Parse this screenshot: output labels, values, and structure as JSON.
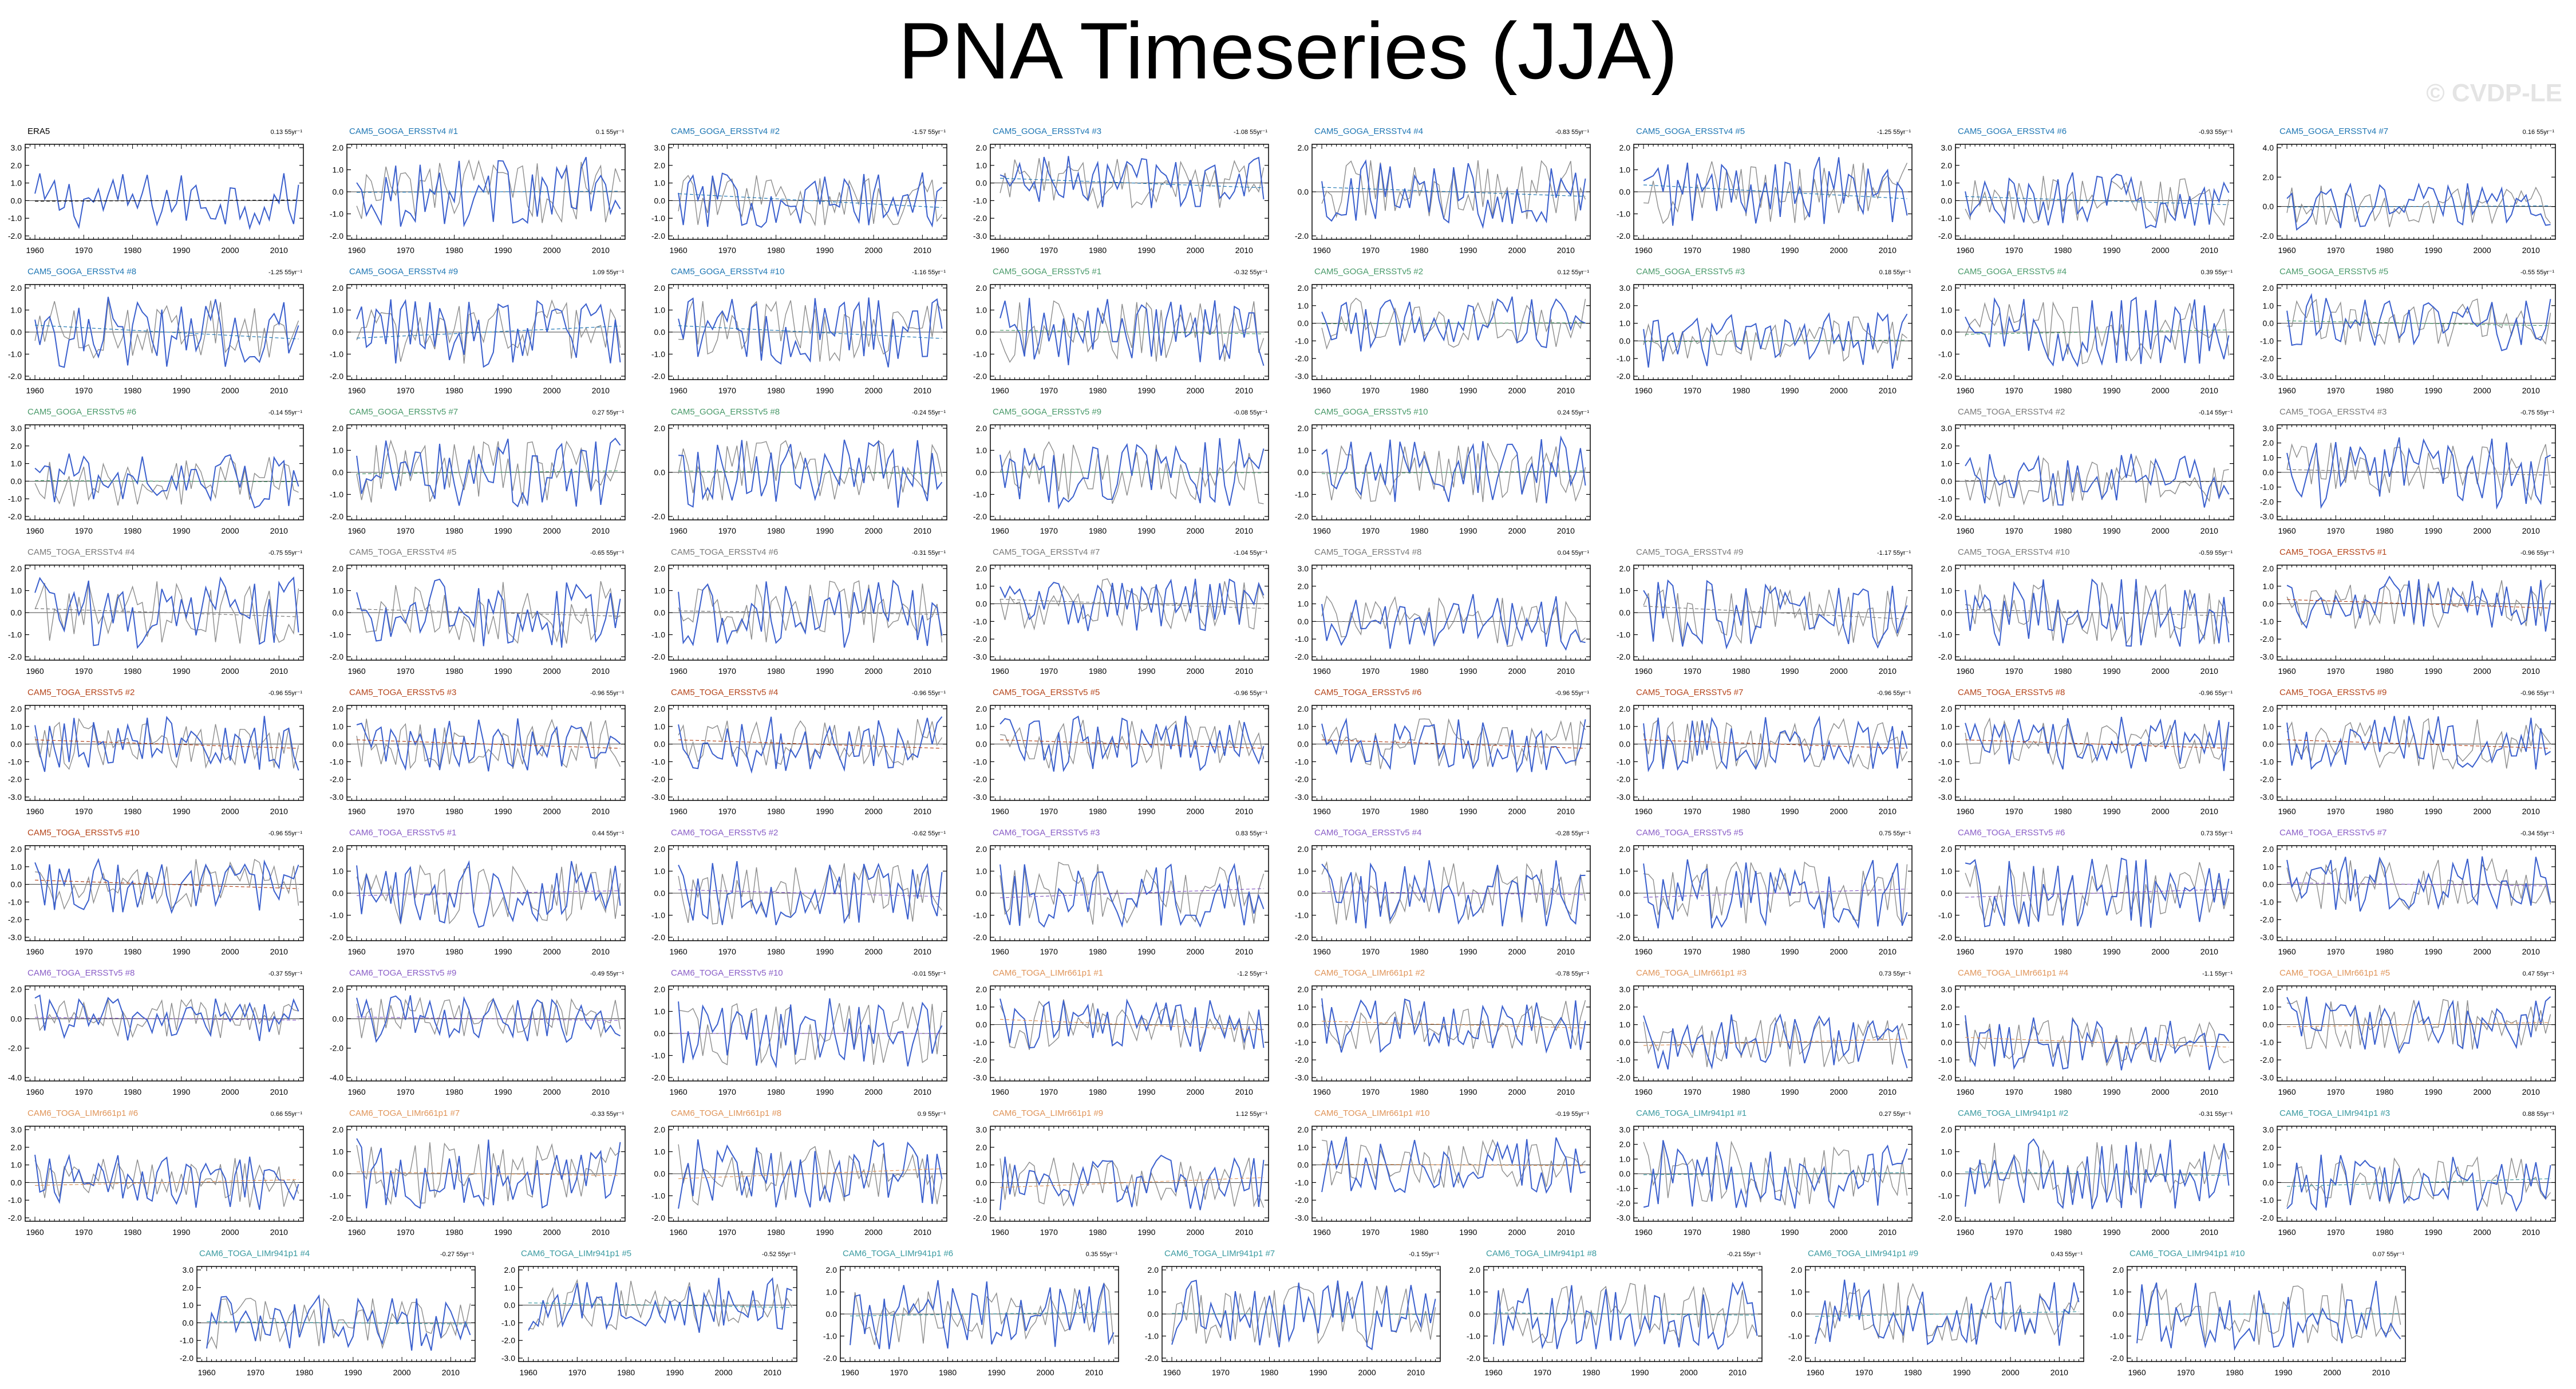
{
  "page": {
    "title": "PNA Timeseries (JJA)",
    "watermark": "© CVDP-LE"
  },
  "colors": {
    "member_line": "#3a5fcd",
    "obs_line": "#8c8c8c",
    "zero_line": "#000000"
  },
  "chart_data": {
    "type": "line",
    "x_ticks": [
      "1960",
      "1970",
      "1980",
      "1990",
      "2000",
      "2010"
    ],
    "xlim": [
      1958,
      2015
    ],
    "trend_unit": "55yr",
    "panels": [
      {
        "name": "ERA5",
        "trend": "0.13",
        "color": "#000000",
        "yticks": [
          "3.0",
          "2.0",
          "1.0",
          "0.0",
          "-1.0",
          "-2.0"
        ]
      },
      {
        "name": "CAM5_GOGA_ERSSTv4 #1",
        "trend": "0.1",
        "color": "#1f77b4",
        "yticks": [
          "2.0",
          "1.0",
          "0.0",
          "-1.0",
          "-2.0"
        ]
      },
      {
        "name": "CAM5_GOGA_ERSSTv4 #2",
        "trend": "-1.57",
        "color": "#1f77b4",
        "yticks": [
          "3.0",
          "2.0",
          "1.0",
          "0.0",
          "-1.0",
          "-2.0"
        ]
      },
      {
        "name": "CAM5_GOGA_ERSSTv4 #3",
        "trend": "-1.08",
        "color": "#1f77b4",
        "yticks": [
          "2.0",
          "1.0",
          "0.0",
          "-1.0",
          "-2.0",
          "-3.0"
        ]
      },
      {
        "name": "CAM5_GOGA_ERSSTv4 #4",
        "trend": "-0.83",
        "color": "#1f77b4",
        "yticks": [
          "2.0",
          "0.0",
          "-2.0"
        ]
      },
      {
        "name": "CAM5_GOGA_ERSSTv4 #5",
        "trend": "-1.25",
        "color": "#1f77b4",
        "yticks": [
          "2.0",
          "1.0",
          "0.0",
          "-1.0",
          "-2.0"
        ]
      },
      {
        "name": "CAM5_GOGA_ERSSTv4 #6",
        "trend": "-0.93",
        "color": "#1f77b4",
        "yticks": [
          "3.0",
          "2.0",
          "1.0",
          "0.0",
          "-1.0",
          "-2.0"
        ]
      },
      {
        "name": "CAM5_GOGA_ERSSTv4 #7",
        "trend": "0.16",
        "color": "#1f77b4",
        "yticks": [
          "4.0",
          "2.0",
          "0.0",
          "-2.0"
        ]
      },
      {
        "name": "CAM5_GOGA_ERSSTv4 #8",
        "trend": "-1.25",
        "color": "#1f77b4",
        "yticks": [
          "2.0",
          "1.0",
          "0.0",
          "-1.0",
          "-2.0"
        ]
      },
      {
        "name": "CAM5_GOGA_ERSSTv4 #9",
        "trend": "1.09",
        "color": "#1f77b4",
        "yticks": [
          "2.0",
          "1.0",
          "0.0",
          "-1.0",
          "-2.0"
        ]
      },
      {
        "name": "CAM5_GOGA_ERSSTv4 #10",
        "trend": "-1.16",
        "color": "#1f77b4",
        "yticks": [
          "2.0",
          "1.0",
          "0.0",
          "-1.0",
          "-2.0"
        ]
      },
      {
        "name": "CAM5_GOGA_ERSSTv5 #1",
        "trend": "-0.32",
        "color": "#4a9a6a",
        "yticks": [
          "2.0",
          "1.0",
          "0.0",
          "-1.0",
          "-2.0"
        ]
      },
      {
        "name": "CAM5_GOGA_ERSSTv5 #2",
        "trend": "0.12",
        "color": "#4a9a6a",
        "yticks": [
          "2.0",
          "1.0",
          "0.0",
          "-1.0",
          "-2.0",
          "-3.0"
        ]
      },
      {
        "name": "CAM5_GOGA_ERSSTv5 #3",
        "trend": "0.18",
        "color": "#4a9a6a",
        "yticks": [
          "3.0",
          "2.0",
          "1.0",
          "0.0",
          "-1.0",
          "-2.0"
        ]
      },
      {
        "name": "CAM5_GOGA_ERSSTv5 #4",
        "trend": "0.39",
        "color": "#4a9a6a",
        "yticks": [
          "2.0",
          "1.0",
          "0.0",
          "-1.0",
          "-2.0"
        ]
      },
      {
        "name": "CAM5_GOGA_ERSSTv5 #5",
        "trend": "-0.55",
        "color": "#4a9a6a",
        "yticks": [
          "2.0",
          "1.0",
          "0.0",
          "-1.0",
          "-2.0",
          "-3.0"
        ]
      },
      {
        "name": "CAM5_GOGA_ERSSTv5 #6",
        "trend": "-0.14",
        "color": "#4a9a6a",
        "yticks": [
          "3.0",
          "2.0",
          "1.0",
          "0.0",
          "-1.0",
          "-2.0"
        ]
      },
      {
        "name": "CAM5_GOGA_ERSSTv5 #7",
        "trend": "0.27",
        "color": "#4a9a6a",
        "yticks": [
          "2.0",
          "1.0",
          "0.0",
          "-1.0",
          "-2.0"
        ]
      },
      {
        "name": "CAM5_GOGA_ERSSTv5 #8",
        "trend": "-0.24",
        "color": "#4a9a6a",
        "yticks": [
          "2.0",
          "0.0",
          "-2.0"
        ]
      },
      {
        "name": "CAM5_GOGA_ERSSTv5 #9",
        "trend": "-0.08",
        "color": "#4a9a6a",
        "yticks": [
          "2.0",
          "1.0",
          "0.0",
          "-1.0",
          "-2.0"
        ]
      },
      {
        "name": "CAM5_GOGA_ERSSTv5 #10",
        "trend": "0.24",
        "color": "#4a9a6a",
        "yticks": [
          "2.0",
          "1.0",
          "0.0",
          "-1.0",
          "-2.0"
        ]
      },
      null,
      {
        "name": "CAM5_TOGA_ERSSTv4 #2",
        "trend": "-0.14",
        "color": "#7a7a7a",
        "yticks": [
          "3.0",
          "2.0",
          "1.0",
          "0.0",
          "-1.0",
          "-2.0"
        ]
      },
      {
        "name": "CAM5_TOGA_ERSSTv4 #3",
        "trend": "-0.75",
        "color": "#7a7a7a",
        "yticks": [
          "3.0",
          "2.0",
          "1.0",
          "0.0",
          "-1.0",
          "-2.0",
          "-3.0"
        ]
      },
      {
        "name": "CAM5_TOGA_ERSSTv4 #4",
        "trend": "-0.75",
        "color": "#7a7a7a",
        "yticks": [
          "2.0",
          "1.0",
          "0.0",
          "-1.0",
          "-2.0"
        ]
      },
      {
        "name": "CAM5_TOGA_ERSSTv4 #5",
        "trend": "-0.65",
        "color": "#7a7a7a",
        "yticks": [
          "2.0",
          "1.0",
          "0.0",
          "-1.0",
          "-2.0"
        ]
      },
      {
        "name": "CAM5_TOGA_ERSSTv4 #6",
        "trend": "-0.31",
        "color": "#7a7a7a",
        "yticks": [
          "2.0",
          "1.0",
          "0.0",
          "-1.0",
          "-2.0"
        ]
      },
      {
        "name": "CAM5_TOGA_ERSSTv4 #7",
        "trend": "-1.04",
        "color": "#7a7a7a",
        "yticks": [
          "2.0",
          "1.0",
          "0.0",
          "-1.0",
          "-2.0",
          "-3.0"
        ]
      },
      {
        "name": "CAM5_TOGA_ERSSTv4 #8",
        "trend": "0.04",
        "color": "#7a7a7a",
        "yticks": [
          "3.0",
          "2.0",
          "1.0",
          "0.0",
          "-1.0",
          "-2.0"
        ]
      },
      {
        "name": "CAM5_TOGA_ERSSTv4 #9",
        "trend": "-1.17",
        "color": "#7a7a7a",
        "yticks": [
          "2.0",
          "1.0",
          "0.0",
          "-1.0",
          "-2.0"
        ]
      },
      {
        "name": "CAM5_TOGA_ERSSTv4 #10",
        "trend": "-0.59",
        "color": "#7a7a7a",
        "yticks": [
          "2.0",
          "1.0",
          "0.0",
          "-1.0",
          "-2.0"
        ]
      },
      {
        "name": "CAM5_TOGA_ERSSTv5 #1",
        "trend": "-0.96",
        "color": "#b5451b",
        "yticks": [
          "2.0",
          "1.0",
          "0.0",
          "-1.0",
          "-2.0",
          "-3.0"
        ]
      },
      {
        "name": "CAM5_TOGA_ERSSTv5 #2",
        "trend": "-0.96",
        "color": "#b5451b",
        "yticks": [
          "2.0",
          "1.0",
          "0.0",
          "-1.0",
          "-2.0",
          "-3.0"
        ]
      },
      {
        "name": "CAM5_TOGA_ERSSTv5 #3",
        "trend": "-0.96",
        "color": "#b5451b",
        "yticks": [
          "2.0",
          "1.0",
          "0.0",
          "-1.0",
          "-2.0",
          "-3.0"
        ]
      },
      {
        "name": "CAM5_TOGA_ERSSTv5 #4",
        "trend": "-0.96",
        "color": "#b5451b",
        "yticks": [
          "2.0",
          "1.0",
          "0.0",
          "-1.0",
          "-2.0",
          "-3.0"
        ]
      },
      {
        "name": "CAM5_TOGA_ERSSTv5 #5",
        "trend": "-0.96",
        "color": "#b5451b",
        "yticks": [
          "2.0",
          "1.0",
          "0.0",
          "-1.0",
          "-2.0",
          "-3.0"
        ]
      },
      {
        "name": "CAM5_TOGA_ERSSTv5 #6",
        "trend": "-0.96",
        "color": "#b5451b",
        "yticks": [
          "2.0",
          "1.0",
          "0.0",
          "-1.0",
          "-2.0",
          "-3.0"
        ]
      },
      {
        "name": "CAM5_TOGA_ERSSTv5 #7",
        "trend": "-0.96",
        "color": "#b5451b",
        "yticks": [
          "2.0",
          "1.0",
          "0.0",
          "-1.0",
          "-2.0",
          "-3.0"
        ]
      },
      {
        "name": "CAM5_TOGA_ERSSTv5 #8",
        "trend": "-0.96",
        "color": "#b5451b",
        "yticks": [
          "2.0",
          "1.0",
          "0.0",
          "-1.0",
          "-2.0",
          "-3.0"
        ]
      },
      {
        "name": "CAM5_TOGA_ERSSTv5 #9",
        "trend": "-0.96",
        "color": "#b5451b",
        "yticks": [
          "2.0",
          "1.0",
          "0.0",
          "-1.0",
          "-2.0",
          "-3.0"
        ]
      },
      {
        "name": "CAM5_TOGA_ERSSTv5 #10",
        "trend": "-0.96",
        "color": "#b5451b",
        "yticks": [
          "2.0",
          "1.0",
          "0.0",
          "-1.0",
          "-2.0",
          "-3.0"
        ]
      },
      {
        "name": "CAM6_TOGA_ERSSTv5 #1",
        "trend": "0.44",
        "color": "#8a5ec7",
        "yticks": [
          "2.0",
          "1.0",
          "0.0",
          "-1.0",
          "-2.0"
        ]
      },
      {
        "name": "CAM6_TOGA_ERSSTv5 #2",
        "trend": "-0.62",
        "color": "#8a5ec7",
        "yticks": [
          "2.0",
          "1.0",
          "0.0",
          "-1.0",
          "-2.0"
        ]
      },
      {
        "name": "CAM6_TOGA_ERSSTv5 #3",
        "trend": "0.83",
        "color": "#8a5ec7",
        "yticks": [
          "2.0",
          "1.0",
          "0.0",
          "-1.0",
          "-2.0"
        ]
      },
      {
        "name": "CAM6_TOGA_ERSSTv5 #4",
        "trend": "-0.28",
        "color": "#8a5ec7",
        "yticks": [
          "2.0",
          "1.0",
          "0.0",
          "-1.0",
          "-2.0"
        ]
      },
      {
        "name": "CAM6_TOGA_ERSSTv5 #5",
        "trend": "0.75",
        "color": "#8a5ec7",
        "yticks": [
          "2.0",
          "1.0",
          "0.0",
          "-1.0",
          "-2.0"
        ]
      },
      {
        "name": "CAM6_TOGA_ERSSTv5 #6",
        "trend": "0.73",
        "color": "#8a5ec7",
        "yticks": [
          "2.0",
          "1.0",
          "0.0",
          "-1.0",
          "-2.0"
        ]
      },
      {
        "name": "CAM6_TOGA_ERSSTv5 #7",
        "trend": "-0.34",
        "color": "#8a5ec7",
        "yticks": [
          "2.0",
          "1.0",
          "0.0",
          "-1.0",
          "-2.0",
          "-3.0"
        ]
      },
      {
        "name": "CAM6_TOGA_ERSSTv5 #8",
        "trend": "-0.37",
        "color": "#8a5ec7",
        "yticks": [
          "2.0",
          "0.0",
          "-2.0",
          "-4.0"
        ]
      },
      {
        "name": "CAM6_TOGA_ERSSTv5 #9",
        "trend": "-0.49",
        "color": "#8a5ec7",
        "yticks": [
          "2.0",
          "0.0",
          "-2.0",
          "-4.0"
        ]
      },
      {
        "name": "CAM6_TOGA_ERSSTv5 #10",
        "trend": "-0.01",
        "color": "#8a5ec7",
        "yticks": [
          "2.0",
          "1.0",
          "0.0",
          "-1.0",
          "-2.0"
        ]
      },
      {
        "name": "CAM6_TOGA_LIMr661p1 #1",
        "trend": "-1.2",
        "color": "#e0955a",
        "yticks": [
          "2.0",
          "1.0",
          "0.0",
          "-1.0",
          "-2.0",
          "-3.0"
        ]
      },
      {
        "name": "CAM6_TOGA_LIMr661p1 #2",
        "trend": "-0.78",
        "color": "#e0955a",
        "yticks": [
          "2.0",
          "1.0",
          "0.0",
          "-1.0",
          "-2.0",
          "-3.0"
        ]
      },
      {
        "name": "CAM6_TOGA_LIMr661p1 #3",
        "trend": "0.73",
        "color": "#e0955a",
        "yticks": [
          "3.0",
          "2.0",
          "1.0",
          "0.0",
          "-1.0",
          "-2.0"
        ]
      },
      {
        "name": "CAM6_TOGA_LIMr661p1 #4",
        "trend": "-1.1",
        "color": "#e0955a",
        "yticks": [
          "3.0",
          "2.0",
          "1.0",
          "0.0",
          "-1.0",
          "-2.0"
        ]
      },
      {
        "name": "CAM6_TOGA_LIMr661p1 #5",
        "trend": "0.47",
        "color": "#e0955a",
        "yticks": [
          "2.0",
          "1.0",
          "0.0",
          "-1.0",
          "-2.0",
          "-3.0"
        ]
      },
      {
        "name": "CAM6_TOGA_LIMr661p1 #6",
        "trend": "0.66",
        "color": "#e0955a",
        "yticks": [
          "3.0",
          "2.0",
          "1.0",
          "0.0",
          "-1.0",
          "-2.0"
        ]
      },
      {
        "name": "CAM6_TOGA_LIMr661p1 #7",
        "trend": "-0.33",
        "color": "#e0955a",
        "yticks": [
          "2.0",
          "1.0",
          "0.0",
          "-1.0",
          "-2.0"
        ]
      },
      {
        "name": "CAM6_TOGA_LIMr661p1 #8",
        "trend": "0.9",
        "color": "#e0955a",
        "yticks": [
          "2.0",
          "1.0",
          "0.0",
          "-1.0",
          "-2.0"
        ]
      },
      {
        "name": "CAM6_TOGA_LIMr661p1 #9",
        "trend": "1.12",
        "color": "#e0955a",
        "yticks": [
          "3.0",
          "2.0",
          "1.0",
          "0.0",
          "-1.0",
          "-2.0"
        ]
      },
      {
        "name": "CAM6_TOGA_LIMr661p1 #10",
        "trend": "-0.19",
        "color": "#e0955a",
        "yticks": [
          "2.0",
          "1.0",
          "0.0",
          "-1.0",
          "-2.0",
          "-3.0"
        ]
      },
      {
        "name": "CAM6_TOGA_LIMr941p1 #1",
        "trend": "0.27",
        "color": "#3a9aa0",
        "yticks": [
          "3.0",
          "2.0",
          "1.0",
          "0.0",
          "-1.0",
          "-2.0",
          "-3.0"
        ]
      },
      {
        "name": "CAM6_TOGA_LIMr941p1 #2",
        "trend": "-0.31",
        "color": "#3a9aa0",
        "yticks": [
          "2.0",
          "1.0",
          "0.0",
          "-1.0",
          "-2.0"
        ]
      },
      {
        "name": "CAM6_TOGA_LIMr941p1 #3",
        "trend": "0.88",
        "color": "#3a9aa0",
        "yticks": [
          "3.0",
          "2.0",
          "1.0",
          "0.0",
          "-1.0",
          "-2.0"
        ]
      },
      {
        "name": "CAM6_TOGA_LIMr941p1 #4",
        "trend": "-0.27",
        "color": "#3a9aa0",
        "yticks": [
          "3.0",
          "2.0",
          "1.0",
          "0.0",
          "-1.0",
          "-2.0"
        ]
      },
      {
        "name": "CAM6_TOGA_LIMr941p1 #5",
        "trend": "-0.52",
        "color": "#3a9aa0",
        "yticks": [
          "2.0",
          "1.0",
          "0.0",
          "-1.0",
          "-2.0",
          "-3.0"
        ]
      },
      {
        "name": "CAM6_TOGA_LIMr941p1 #6",
        "trend": "0.35",
        "color": "#3a9aa0",
        "yticks": [
          "2.0",
          "1.0",
          "0.0",
          "-1.0",
          "-2.0"
        ]
      },
      {
        "name": "CAM6_TOGA_LIMr941p1 #7",
        "trend": "-0.1",
        "color": "#3a9aa0",
        "yticks": [
          "2.0",
          "1.0",
          "0.0",
          "-1.0",
          "-2.0"
        ]
      },
      {
        "name": "CAM6_TOGA_LIMr941p1 #8",
        "trend": "-0.21",
        "color": "#3a9aa0",
        "yticks": [
          "2.0",
          "1.0",
          "0.0",
          "-1.0",
          "-2.0"
        ]
      },
      {
        "name": "CAM6_TOGA_LIMr941p1 #9",
        "trend": "0.43",
        "color": "#3a9aa0",
        "yticks": [
          "2.0",
          "1.0",
          "0.0",
          "-1.0",
          "-2.0"
        ]
      },
      {
        "name": "CAM6_TOGA_LIMr941p1 #10",
        "trend": "0.07",
        "color": "#3a9aa0",
        "yticks": [
          "2.0",
          "1.0",
          "0.0",
          "-1.0",
          "-2.0"
        ]
      }
    ]
  }
}
